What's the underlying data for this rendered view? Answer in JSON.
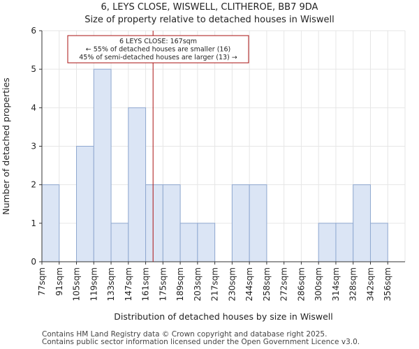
{
  "chart_data": {
    "type": "bar",
    "title": "6, LEYS CLOSE, WISWELL, CLITHEROE, BB7 9DA",
    "subtitle": "Size of property relative to detached houses in Wiswell",
    "xlabel": "Distribution of detached houses by size in Wiswell",
    "ylabel": "Number of detached properties",
    "categories": [
      "77sqm",
      "91sqm",
      "105sqm",
      "119sqm",
      "133sqm",
      "147sqm",
      "161sqm",
      "175sqm",
      "189sqm",
      "203sqm",
      "217sqm",
      "230sqm",
      "244sqm",
      "258sqm",
      "272sqm",
      "286sqm",
      "300sqm",
      "314sqm",
      "328sqm",
      "342sqm",
      "356sqm"
    ],
    "values": [
      2,
      0,
      3,
      5,
      1,
      4,
      2,
      2,
      1,
      1,
      0,
      2,
      2,
      0,
      0,
      0,
      1,
      1,
      2,
      1,
      0
    ],
    "ylim": [
      0,
      6
    ],
    "yticks": [
      0,
      1,
      2,
      3,
      4,
      5,
      6
    ],
    "grid": true,
    "bar_color": "#dbe5f5",
    "bar_edge_color": "#8fa8d0",
    "marker": {
      "x_value": 167,
      "color": "#aa1111",
      "lines": [
        "6 LEYS CLOSE: 167sqm",
        "← 55% of detached houses are smaller (16)",
        "45% of semi-detached houses are larger (13) →"
      ]
    }
  },
  "footer": {
    "line1": "Contains HM Land Registry data © Crown copyright and database right 2025.",
    "line2": "Contains public sector information licensed under the Open Government Licence v3.0."
  }
}
